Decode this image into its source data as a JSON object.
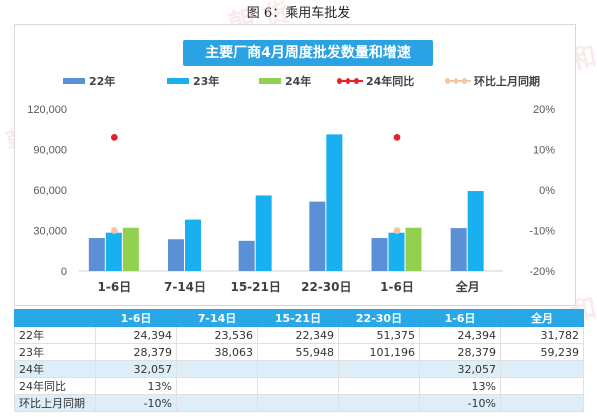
{
  "figure_caption": "图 6：乘用车批发",
  "watermark": {
    "text_cn": "朝 货",
    "text_en": "RE SEARCH",
    "text_left": "和"
  },
  "colors": {
    "s22": "#5b8fd6",
    "s23": "#18b0ef",
    "s24": "#92d050",
    "yoy": "#e4242b",
    "mom": "#f6c6a0",
    "title_bg": "#2aa2e3",
    "header_bg": "#29a8e8",
    "row_alt": "#ddeef9"
  },
  "chart_data": {
    "type": "bar",
    "title": "主要厂商4月周度批发数量和增速",
    "categories": [
      "1-6日",
      "7-14日",
      "15-21日",
      "22-30日",
      "1-6日",
      "全月"
    ],
    "series": [
      {
        "name": "22年",
        "kind": "bar",
        "axis": "left",
        "values": [
          24394,
          23536,
          22349,
          51375,
          24394,
          31782
        ]
      },
      {
        "name": "23年",
        "kind": "bar",
        "axis": "left",
        "values": [
          28379,
          38063,
          55948,
          101196,
          28379,
          59239
        ]
      },
      {
        "name": "24年",
        "kind": "bar",
        "axis": "left",
        "values": [
          32057,
          null,
          null,
          null,
          32057,
          null
        ]
      },
      {
        "name": "24年同比",
        "kind": "marker",
        "axis": "right",
        "values": [
          13,
          null,
          null,
          null,
          13,
          null
        ]
      },
      {
        "name": "环比上月同期",
        "kind": "marker",
        "axis": "right",
        "values": [
          -10,
          null,
          null,
          null,
          -10,
          null
        ]
      }
    ],
    "y_left": {
      "min": 0,
      "max": 120000,
      "ticks": [
        "0",
        "30,000",
        "60,000",
        "90,000",
        "120,000"
      ]
    },
    "y_right": {
      "min": -20,
      "max": 20,
      "ticks": [
        "-20%",
        "-10%",
        "0%",
        "10%",
        "20%"
      ]
    },
    "legend_position": "top",
    "grid": false
  },
  "table": {
    "headers": [
      "",
      "1-6日",
      "7-14日",
      "15-21日",
      "22-30日",
      "1-6日",
      "全月"
    ],
    "rows": [
      {
        "label": "22年",
        "cells": [
          "24,394",
          "23,536",
          "22,349",
          "51,375",
          "24,394",
          "31,782"
        ]
      },
      {
        "label": "23年",
        "cells": [
          "28,379",
          "38,063",
          "55,948",
          "101,196",
          "28,379",
          "59,239"
        ]
      },
      {
        "label": "24年",
        "cells": [
          "32,057",
          "",
          "",
          "",
          "32,057",
          ""
        ]
      },
      {
        "label": "24年同比",
        "cells": [
          "13%",
          "",
          "",
          "",
          "13%",
          ""
        ]
      },
      {
        "label": "环比上月同期",
        "cells": [
          "-10%",
          "",
          "",
          "",
          "-10%",
          ""
        ]
      }
    ]
  }
}
